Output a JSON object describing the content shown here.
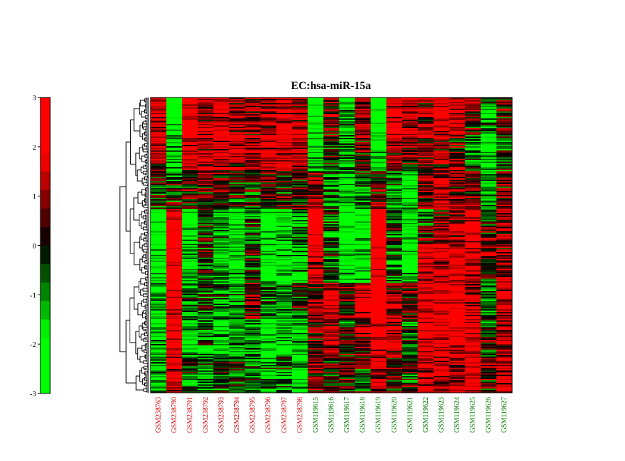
{
  "chart_data": {
    "type": "heatmap",
    "title": "EC:hsa-miR-15a",
    "colorbar": {
      "ticks": [
        3,
        2,
        1,
        0,
        -1,
        -2,
        -3
      ],
      "tick_labels": [
        "3",
        "2",
        "1",
        "0",
        "-1",
        "-2",
        "-3"
      ],
      "range": [
        -3,
        3
      ],
      "low_color": "#00ff00",
      "mid_color": "#000000",
      "high_color": "#ff0000"
    },
    "columns": [
      {
        "label": "GSM238763",
        "group": "red"
      },
      {
        "label": "GSM238790",
        "group": "red"
      },
      {
        "label": "GSM238791",
        "group": "red"
      },
      {
        "label": "GSM238792",
        "group": "red"
      },
      {
        "label": "GSM238793",
        "group": "red"
      },
      {
        "label": "GSM238794",
        "group": "red"
      },
      {
        "label": "GSM238795",
        "group": "red"
      },
      {
        "label": "GSM238796",
        "group": "red"
      },
      {
        "label": "GSM238797",
        "group": "red"
      },
      {
        "label": "GSM238798",
        "group": "red"
      },
      {
        "label": "GSM119615",
        "group": "green"
      },
      {
        "label": "GSM119616",
        "group": "green"
      },
      {
        "label": "GSM119617",
        "group": "green"
      },
      {
        "label": "GSM119618",
        "group": "green"
      },
      {
        "label": "GSM119619",
        "group": "green"
      },
      {
        "label": "GSM119620",
        "group": "green"
      },
      {
        "label": "GSM119621",
        "group": "green"
      },
      {
        "label": "GSM119622",
        "group": "green"
      },
      {
        "label": "GSM119623",
        "group": "green"
      },
      {
        "label": "GSM119624",
        "group": "green"
      },
      {
        "label": "GSM119625",
        "group": "green"
      },
      {
        "label": "GSM119626",
        "group": "green"
      },
      {
        "label": "GSM119627",
        "group": "green"
      }
    ],
    "label_colors": {
      "red": "#cc0000",
      "green": "#008000"
    },
    "row_blocks": [
      [
        1.8,
        -2.5,
        2.0,
        1.2,
        1.5,
        1.0,
        0.8,
        1.2,
        1.5,
        1.0,
        -2.5,
        0.5,
        -1.5,
        1.0,
        -2.8,
        2.0,
        1.5,
        1.0,
        2.2,
        1.5,
        1.0,
        -1.0,
        0.5
      ],
      [
        1.2,
        -1.8,
        1.8,
        1.5,
        1.8,
        1.5,
        1.2,
        2.0,
        2.2,
        1.8,
        -2.0,
        0.2,
        -1.0,
        0.8,
        -2.5,
        1.5,
        1.0,
        0.5,
        1.0,
        0.5,
        -1.0,
        -2.0,
        -0.5
      ],
      [
        0.5,
        -0.5,
        0.8,
        0.5,
        0.5,
        0.2,
        0.0,
        0.5,
        0.5,
        0.3,
        1.0,
        -1.0,
        -1.5,
        -0.5,
        0.0,
        -1.0,
        -2.0,
        0.8,
        1.5,
        1.0,
        0.5,
        -1.5,
        0.5
      ],
      [
        -2.5,
        2.5,
        -2.0,
        -0.3,
        -1.0,
        -2.0,
        -0.5,
        -2.0,
        -1.5,
        -1.0,
        2.5,
        -0.5,
        -2.5,
        -2.2,
        2.6,
        -0.5,
        -2.0,
        -0.5,
        0.5,
        1.0,
        1.8,
        0.0,
        0.8
      ],
      [
        -2.2,
        2.6,
        -1.5,
        0.0,
        -1.5,
        -1.8,
        -0.2,
        -2.0,
        -2.0,
        -1.5,
        2.0,
        -1.0,
        -2.6,
        -2.5,
        2.5,
        -1.0,
        -2.5,
        1.5,
        1.8,
        2.0,
        1.5,
        0.5,
        1.0
      ],
      [
        -1.5,
        2.0,
        -1.0,
        -0.5,
        -1.0,
        -1.0,
        1.0,
        -0.5,
        -1.0,
        0.0,
        0.5,
        2.0,
        0.5,
        1.5,
        2.5,
        1.0,
        0.5,
        1.8,
        2.0,
        2.2,
        1.0,
        -1.0,
        1.5
      ],
      [
        -1.8,
        2.2,
        -1.5,
        -1.0,
        -1.8,
        -1.2,
        -1.0,
        -2.0,
        -1.5,
        -1.2,
        0.5,
        1.5,
        0.0,
        1.0,
        2.3,
        1.5,
        -0.5,
        2.0,
        2.2,
        2.0,
        1.5,
        0.0,
        1.2
      ],
      [
        -1.0,
        1.5,
        -0.5,
        -0.8,
        -0.5,
        0.0,
        -0.8,
        -1.0,
        -0.5,
        -1.5,
        1.0,
        0.0,
        0.5,
        0.0,
        1.5,
        0.5,
        0.0,
        1.5,
        1.5,
        1.0,
        2.0,
        0.5,
        1.5
      ]
    ]
  }
}
